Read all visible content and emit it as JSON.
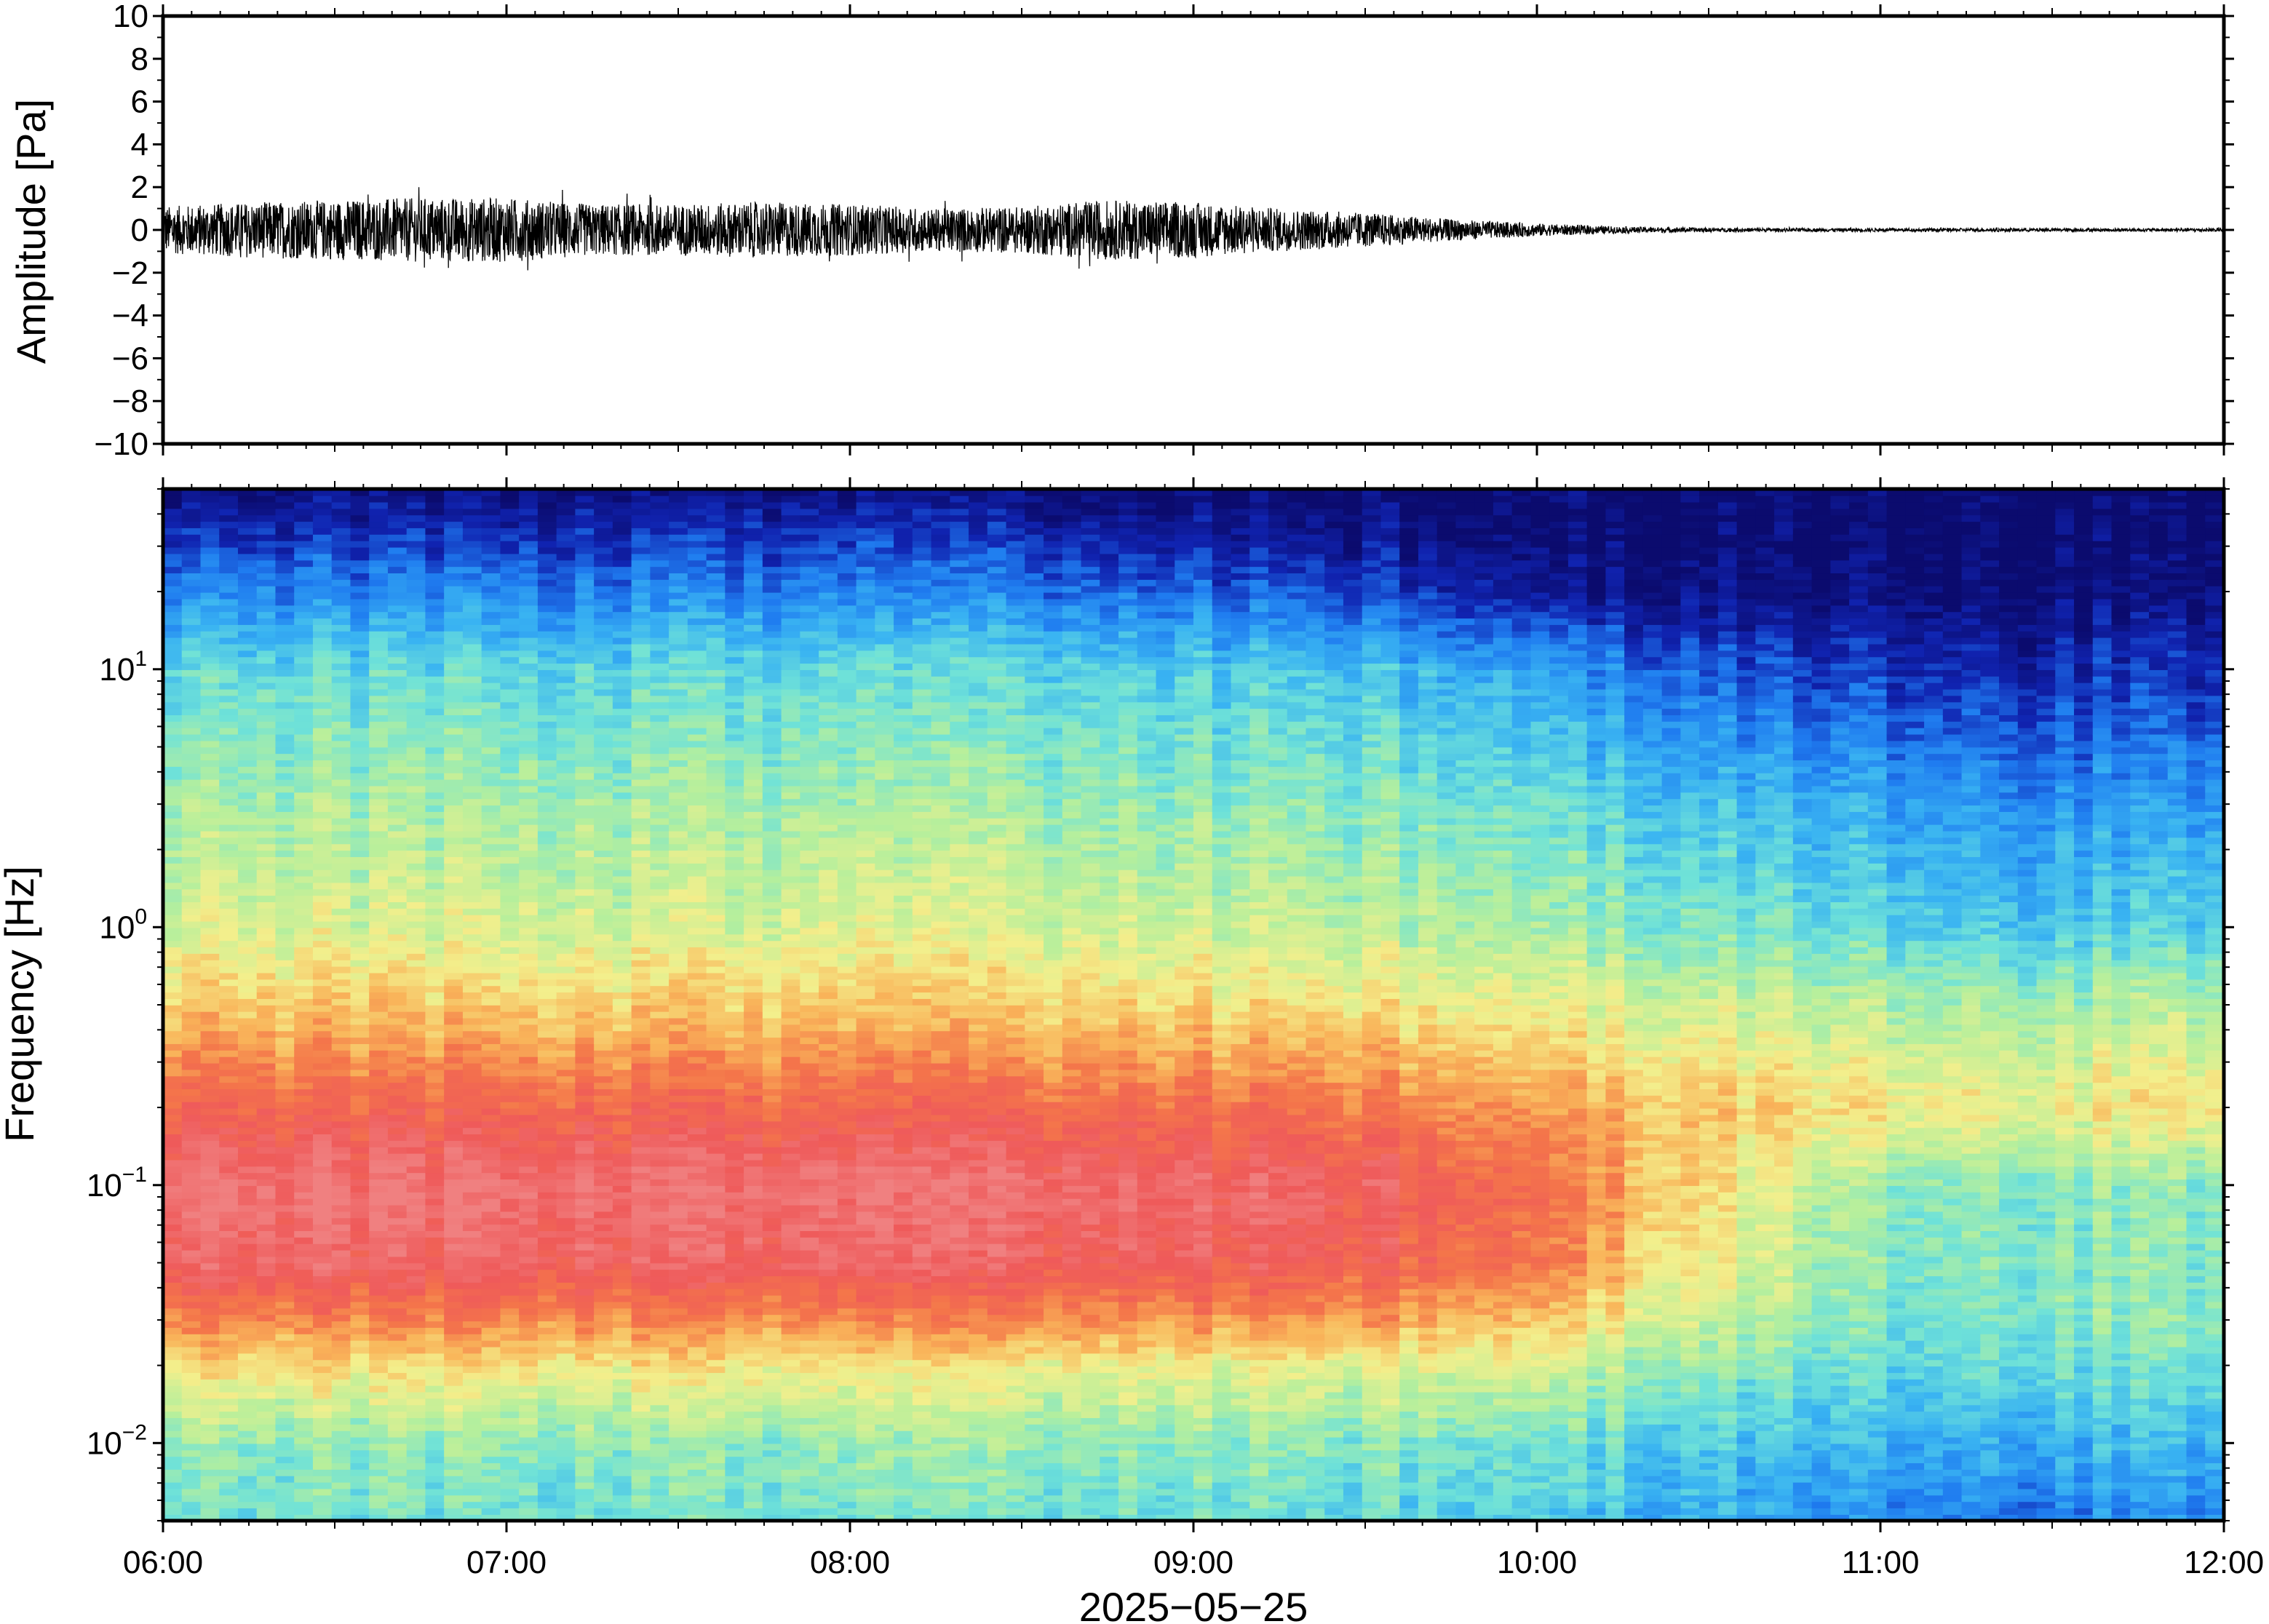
{
  "chart_data": [
    {
      "type": "line",
      "panel": "waveform",
      "ylabel": "Amplitude [Pa]",
      "ylim": [
        -10,
        10
      ],
      "yticks": [
        -10,
        -8,
        -6,
        -4,
        -2,
        0,
        2,
        4,
        6,
        8,
        10
      ],
      "ytick_labels": [
        "−10",
        "−8",
        "−6",
        "−4",
        "−2",
        "0",
        "2",
        "4",
        "6",
        "8",
        "10"
      ],
      "grid": false,
      "series": [
        {
          "color": "#000000",
          "time": [
            "06:00",
            "06:15",
            "06:30",
            "06:45",
            "07:00",
            "07:15",
            "07:30",
            "07:45",
            "08:00",
            "08:15",
            "08:30",
            "08:45",
            "09:00",
            "09:15",
            "09:30",
            "09:45",
            "10:00",
            "10:15",
            "10:30",
            "10:45",
            "11:00",
            "11:15",
            "11:30",
            "11:45",
            "12:00"
          ],
          "envelope_amplitude": [
            1.1,
            1.3,
            1.4,
            1.5,
            1.5,
            1.2,
            1.2,
            1.3,
            1.2,
            1.0,
            1.1,
            1.4,
            1.3,
            1.0,
            0.8,
            0.5,
            0.3,
            0.15,
            0.1,
            0.08,
            0.08,
            0.08,
            0.08,
            0.08,
            0.08
          ],
          "peak_max": 2.0,
          "peak_min": -2.4
        }
      ]
    },
    {
      "type": "heatmap",
      "panel": "spectrogram",
      "ylabel": "Frequency [Hz]",
      "xlabel": "2025−05−25",
      "x_tick_labels": [
        "06:00",
        "07:00",
        "08:00",
        "09:00",
        "10:00",
        "11:00",
        "12:00"
      ],
      "x_range": [
        "06:00",
        "12:00"
      ],
      "y_scale": "log",
      "ylim": [
        0.005,
        50
      ],
      "y_tick_labels": [
        {
          "base": "10",
          "exp": "−2"
        },
        {
          "base": "10",
          "exp": "−1"
        },
        {
          "base": "10",
          "exp": "0"
        },
        {
          "base": "10",
          "exp": "1"
        }
      ],
      "colormap": [
        "#0b0b6e",
        "#1023b0",
        "#1f7cf0",
        "#39b3f2",
        "#6fe2d8",
        "#b6ef9c",
        "#f3ef8c",
        "#f9b55a",
        "#f4764a",
        "#ef5a5a",
        "#f08080"
      ],
      "time_nodes": [
        "06:00",
        "07:00",
        "08:00",
        "09:00",
        "09:30",
        "10:00",
        "10:30",
        "11:00",
        "11:30",
        "12:00"
      ],
      "freq_nodes_hz": [
        0.005,
        0.01,
        0.02,
        0.03,
        0.05,
        0.1,
        0.2,
        0.5,
        1,
        3,
        10,
        20,
        35,
        50
      ],
      "relative_power": [
        [
          0.4,
          0.45,
          0.62,
          0.78,
          0.93,
          0.97,
          0.85,
          0.66,
          0.55,
          0.48,
          0.38,
          0.22,
          0.1,
          0.02
        ],
        [
          0.4,
          0.45,
          0.62,
          0.78,
          0.93,
          0.97,
          0.85,
          0.66,
          0.55,
          0.48,
          0.38,
          0.22,
          0.1,
          0.02
        ],
        [
          0.4,
          0.45,
          0.6,
          0.76,
          0.92,
          0.96,
          0.84,
          0.65,
          0.55,
          0.47,
          0.37,
          0.21,
          0.1,
          0.02
        ],
        [
          0.4,
          0.45,
          0.6,
          0.76,
          0.91,
          0.95,
          0.83,
          0.64,
          0.54,
          0.46,
          0.36,
          0.18,
          0.06,
          0.01
        ],
        [
          0.38,
          0.44,
          0.58,
          0.74,
          0.88,
          0.92,
          0.8,
          0.62,
          0.52,
          0.44,
          0.33,
          0.14,
          0.04,
          0.0
        ],
        [
          0.34,
          0.41,
          0.55,
          0.68,
          0.8,
          0.82,
          0.74,
          0.58,
          0.48,
          0.4,
          0.27,
          0.06,
          0.0,
          0.0
        ],
        [
          0.28,
          0.34,
          0.45,
          0.52,
          0.58,
          0.62,
          0.66,
          0.54,
          0.42,
          0.32,
          0.16,
          0.02,
          0.0,
          0.0
        ],
        [
          0.22,
          0.3,
          0.38,
          0.42,
          0.44,
          0.46,
          0.62,
          0.5,
          0.38,
          0.28,
          0.12,
          0.02,
          0.0,
          0.0
        ],
        [
          0.2,
          0.3,
          0.4,
          0.44,
          0.44,
          0.44,
          0.6,
          0.48,
          0.34,
          0.24,
          0.1,
          0.02,
          0.0,
          0.0
        ],
        [
          0.24,
          0.32,
          0.42,
          0.46,
          0.45,
          0.46,
          0.64,
          0.52,
          0.38,
          0.27,
          0.12,
          0.03,
          0.0,
          0.0
        ]
      ]
    }
  ]
}
